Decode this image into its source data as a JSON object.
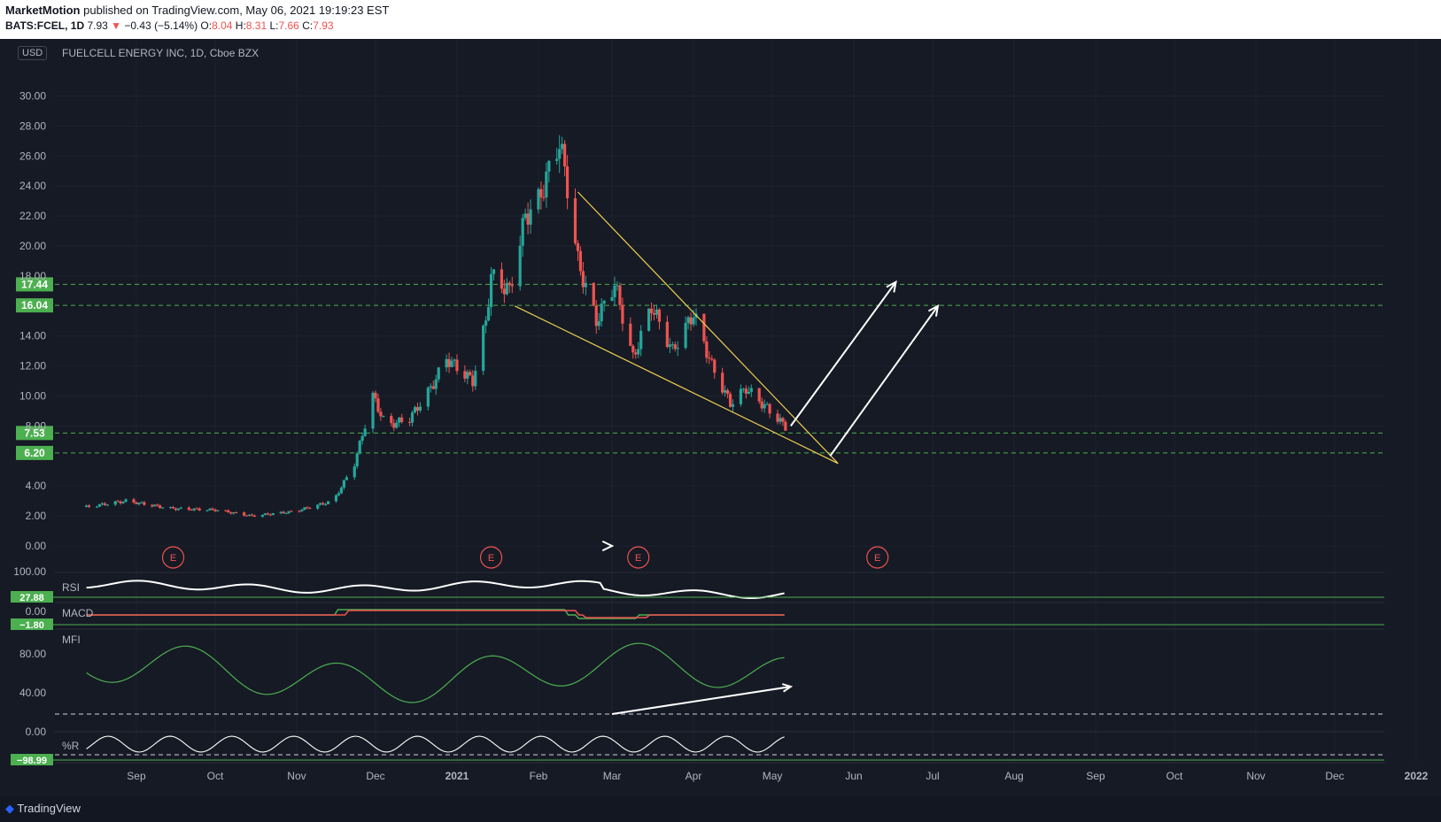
{
  "header": {
    "author": "MarketMotion",
    "published": " published on TradingView.com, May 06, 2021 19:19:23 EST",
    "symbol": "BATS:FCEL, 1D",
    "last": " 7.93 ",
    "arrow": "▼",
    "change": " −0.43 (−5.14%) ",
    "o_label": "O:",
    "o": "8.04",
    "h_label": " H:",
    "h": "8.31",
    "l_label": " L:",
    "l": "7.66",
    "c_label": " C:",
    "c": "7.93"
  },
  "chart_title": "FUELCELL ENERGY INC, 1D, Cboe BZX",
  "currency": "USD",
  "footer_brand": "TradingView",
  "colors": {
    "up": "#26a69a",
    "down": "#ef5350",
    "wedge": "#f0d050",
    "level": "#4caf50",
    "mfi": "#4caf50"
  },
  "chart_data": {
    "type": "candlestick",
    "title": "FUELCELL ENERGY INC, 1D, Cboe BZX",
    "y_ticks": [
      "30.00",
      "28.00",
      "26.00",
      "24.00",
      "22.00",
      "20.00",
      "18.00",
      "14.00",
      "12.00",
      "10.00",
      "8.00",
      "4.00",
      "2.00",
      "0.00"
    ],
    "ylim": [
      0,
      30
    ],
    "x_ticks": [
      "Sep",
      "Oct",
      "Nov",
      "Dec",
      "2021",
      "Feb",
      "Mar",
      "Apr",
      "May",
      "Jun",
      "Jul",
      "Aug",
      "Sep",
      "Oct",
      "Nov",
      "Dec",
      "2022"
    ],
    "price_path": [
      [
        "2020-08-13",
        2.6
      ],
      [
        "2020-08-28",
        3.0
      ],
      [
        "2020-09-14",
        2.5
      ],
      [
        "2020-10-01",
        2.4
      ],
      [
        "2020-10-15",
        2.0
      ],
      [
        "2020-10-31",
        2.3
      ],
      [
        "2020-11-15",
        3.0
      ],
      [
        "2020-11-23",
        5.5
      ],
      [
        "2020-11-30",
        10.0
      ],
      [
        "2020-12-05",
        8.0
      ],
      [
        "2020-12-14",
        8.5
      ],
      [
        "2020-12-22",
        10.5
      ],
      [
        "2020-12-28",
        12.5
      ],
      [
        "2021-01-07",
        11.0
      ],
      [
        "2021-01-12",
        15.0
      ],
      [
        "2021-01-14",
        18.0
      ],
      [
        "2021-01-21",
        17.0
      ],
      [
        "2021-01-27",
        22.0
      ],
      [
        "2021-02-01",
        23.0
      ],
      [
        "2021-02-09",
        27.0
      ],
      [
        "2021-02-12",
        24.0
      ],
      [
        "2021-02-16",
        19.0
      ],
      [
        "2021-02-23",
        15.0
      ],
      [
        "2021-03-02",
        17.5
      ],
      [
        "2021-03-09",
        12.5
      ],
      [
        "2021-03-16",
        16.0
      ],
      [
        "2021-03-24",
        13.0
      ],
      [
        "2021-04-01",
        15.5
      ],
      [
        "2021-04-08",
        12.0
      ],
      [
        "2021-04-15",
        9.5
      ],
      [
        "2021-04-21",
        10.5
      ],
      [
        "2021-04-27",
        9.5
      ],
      [
        "2021-05-03",
        8.5
      ],
      [
        "2021-05-06",
        7.93
      ]
    ],
    "horizontal_levels": [
      17.44,
      16.04,
      7.53,
      6.2
    ],
    "wedge_upper": [
      [
        "2021-02-16",
        23.6
      ],
      [
        "2021-05-26",
        5.5
      ]
    ],
    "wedge_lower": [
      [
        "2021-01-23",
        16.0
      ],
      [
        "2021-05-26",
        5.5
      ]
    ],
    "projection_arrows": [
      {
        "from": [
          "2021-05-08",
          8.0
        ],
        "to": [
          "2021-06-17",
          17.6
        ]
      },
      {
        "from": [
          "2021-05-23",
          6.0
        ],
        "to": [
          "2021-07-03",
          16.0
        ]
      }
    ],
    "earnings_markers": [
      "2020-09-15",
      "2021-01-14",
      "2021-03-11",
      "2021-06-10"
    ],
    "earnings_label": "E",
    "indicators": [
      {
        "name": "RSI",
        "top_label": "100.00",
        "value": "27.88"
      },
      {
        "name": "MACD",
        "top_label": "0.00",
        "value": "−1.80"
      },
      {
        "name": "MFI",
        "ticks": [
          "80.00",
          "40.00"
        ],
        "divergence_from": [
          "2021-03-01",
          20
        ],
        "divergence_to": [
          "2021-05-08",
          46
        ]
      },
      {
        "name": "%R",
        "top_label": "0.00",
        "value": "−98.99"
      }
    ]
  }
}
